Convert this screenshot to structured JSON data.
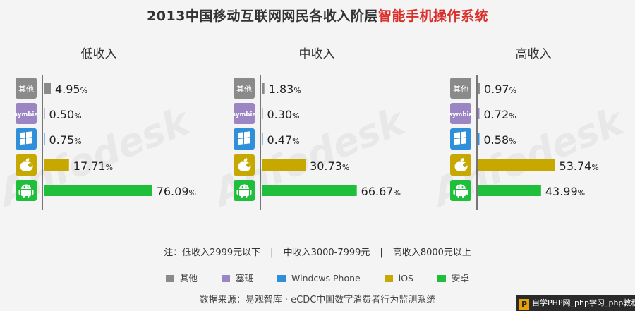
{
  "title_prefix": "2013中国移动互联网网民各收入阶层",
  "title_highlight": "智能手机操作系统",
  "watermark": "Anfodesk",
  "colors": {
    "其他": "#8a8a8a",
    "塞班": "#9b85c2",
    "Windows Phone": "#2f8fd8",
    "iOS": "#c7a800",
    "安卓": "#1fbf3b"
  },
  "icon_labels": {
    "other": "其他",
    "symbian": "symbia"
  },
  "chart_data": [
    {
      "type": "bar",
      "title": "低收入",
      "categories": [
        "其他",
        "塞班",
        "Windows Phone",
        "iOS",
        "安卓"
      ],
      "values": [
        4.95,
        0.5,
        0.75,
        17.71,
        76.09
      ],
      "xlim": [
        0,
        100
      ],
      "unit": "%"
    },
    {
      "type": "bar",
      "title": "中收入",
      "categories": [
        "其他",
        "塞班",
        "Windows Phone",
        "iOS",
        "安卓"
      ],
      "values": [
        1.83,
        0.3,
        0.47,
        30.73,
        66.67
      ],
      "xlim": [
        0,
        100
      ],
      "unit": "%"
    },
    {
      "type": "bar",
      "title": "高收入",
      "categories": [
        "其他",
        "塞班",
        "Windows Phone",
        "iOS",
        "安卓"
      ],
      "values": [
        0.97,
        0.72,
        0.58,
        53.74,
        43.99
      ],
      "xlim": [
        0,
        100
      ],
      "unit": "%"
    }
  ],
  "note": {
    "prefix": "注：低收入2999元以下",
    "mid": "中收入3000-7999元",
    "high": "高收入8000元以上",
    "separator": "|"
  },
  "legend": [
    {
      "label": "其他",
      "key": "其他"
    },
    {
      "label": "塞班",
      "key": "塞班"
    },
    {
      "label": "Windcws Phone",
      "key": "Windows Phone"
    },
    {
      "label": "iOS",
      "key": "iOS"
    },
    {
      "label": "安卓",
      "key": "安卓"
    }
  ],
  "source": "数据来源：易观智库 · eCDC中国数字消费者行为监测系统",
  "badge": {
    "logo": "P",
    "text": "自学PHP网_php学习_php教程"
  }
}
